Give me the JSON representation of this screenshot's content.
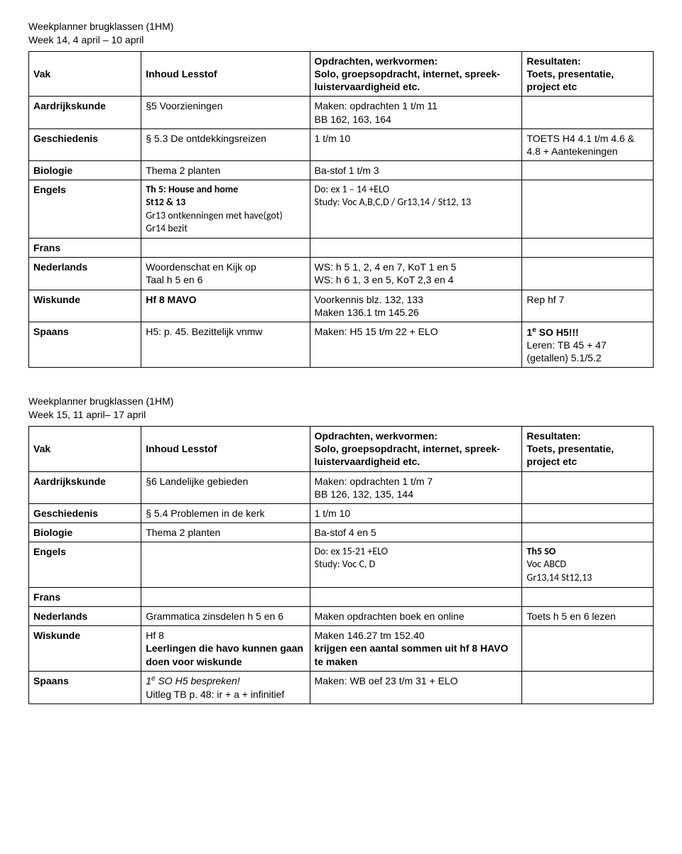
{
  "planner1": {
    "title1": "Weekplanner brugklassen (1HM)",
    "title2": "Week 14, 4 april – 10 april",
    "head": {
      "c1": "Vak",
      "c2": "Inhoud Lesstof",
      "c3a": "Opdrachten, werkvormen:",
      "c3b": "Solo, groepsopdracht, internet, spreek-luistervaardigheid etc.",
      "c4a": "Resultaten:",
      "c4b": "Toets, presentatie, project etc"
    },
    "rows": {
      "r1": {
        "c1": "Aardrijkskunde",
        "c2": "§5 Voorzieningen",
        "c3a": "Maken: opdrachten 1 t/m 11",
        "c3b": "BB 162, 163, 164",
        "c4": ""
      },
      "r2": {
        "c1": "Geschiedenis",
        "c2": "§ 5.3 De ontdekkingsreizen",
        "c3": "1 t/m 10",
        "c4a": "TOETS H4 4.1 t/m 4.6 & 4.8 + Aantekeningen"
      },
      "r3": {
        "c1": "Biologie",
        "c2": "Thema 2 planten",
        "c3": "Ba-stof 1 t/m 3",
        "c4": ""
      },
      "r4": {
        "c1": "Engels",
        "c2a": "Th 5: House and home",
        "c2b": "St12 & 13",
        "c2c": "Gr13 ontkenningen met have(got)",
        "c2d": "Gr14 bezit",
        "c3a": "Do: ex 1 – 14 +ELO",
        "c3b": "Study: Voc A,B,C,D / Gr13,14 / St12, 13",
        "c4": ""
      },
      "r5": {
        "c1": "Frans",
        "c2": "",
        "c3": "",
        "c4": ""
      },
      "r6": {
        "c1": "Nederlands",
        "c2a": "Woordenschat en Kijk op",
        "c2b": "Taal h 5 en 6",
        "c3a": "WS: h 5 1, 2, 4 en 7, KoT 1 en 5",
        "c3b": "WS: h 6 1, 3 en 5, KoT 2,3 en 4",
        "c4": ""
      },
      "r7": {
        "c1": "Wiskunde",
        "c2": "Hf 8 MAVO",
        "c3a": "Voorkennis blz. 132, 133",
        "c3b": "Maken 136.1 tm 145.26",
        "c4": "Rep hf 7"
      },
      "r8": {
        "c1": "Spaans",
        "c2": "H5: p. 45. Bezittelijk vnmw",
        "c3": "Maken: H5 15 t/m 22 + ELO",
        "c4pre": "1",
        "c4sup": "e",
        "c4post": " SO H5!!!",
        "c4b": "Leren: TB 45 + 47 (getallen) 5.1/5.2"
      }
    }
  },
  "planner2": {
    "title1": "Weekplanner brugklassen (1HM)",
    "title2": "Week 15, 11 april– 17 april",
    "head": {
      "c1": "Vak",
      "c2": "Inhoud Lesstof",
      "c3a": "Opdrachten, werkvormen:",
      "c3b": "Solo, groepsopdracht, internet, spreek-luistervaardigheid etc.",
      "c4a": "Resultaten:",
      "c4b": "Toets, presentatie, project etc"
    },
    "rows": {
      "r1": {
        "c1": "Aardrijkskunde",
        "c2": "§6 Landelijke gebieden",
        "c3a": "Maken: opdrachten 1 t/m 7",
        "c3b": "BB 126, 132, 135, 144",
        "c4": ""
      },
      "r2": {
        "c1": "Geschiedenis",
        "c2": "§ 5.4 Problemen in de kerk",
        "c3": "1 t/m 10",
        "c4": ""
      },
      "r3": {
        "c1": "Biologie",
        "c2": "Thema 2 planten",
        "c3": "Ba-stof 4 en 5",
        "c4": ""
      },
      "r4": {
        "c1": "Engels",
        "c2": "",
        "c3a": "Do: ex 15-21 +ELO",
        "c3b": "Study: Voc C, D",
        "c4a": "Th5 SO",
        "c4b": "Voc ABCD",
        "c4c": "Gr13,14 St12,13"
      },
      "r5": {
        "c1": "Frans",
        "c2": "",
        "c3": "",
        "c4": ""
      },
      "r6": {
        "c1": "Nederlands",
        "c2": "Grammatica zinsdelen h 5 en 6",
        "c3": "Maken opdrachten boek en online",
        "c4": "Toets h 5 en 6 lezen"
      },
      "r7": {
        "c1": "Wiskunde",
        "c2a": "Hf 8",
        "c2b": "Leerlingen die havo kunnen gaan doen voor wiskunde",
        "c3a": "Maken 146.27 tm 152.40",
        "c3b": "krijgen een aantal sommen uit hf 8 HAVO te maken",
        "c4": ""
      },
      "r8": {
        "c1": "Spaans",
        "c2pre": "1",
        "c2sup": "e",
        "c2post": " SO H5 bespreken!",
        "c2b": "Uitleg TB p. 48: ir + a + infinitief",
        "c3": "Maken: WB oef 23 t/m 31 + ELO",
        "c4": ""
      }
    }
  }
}
